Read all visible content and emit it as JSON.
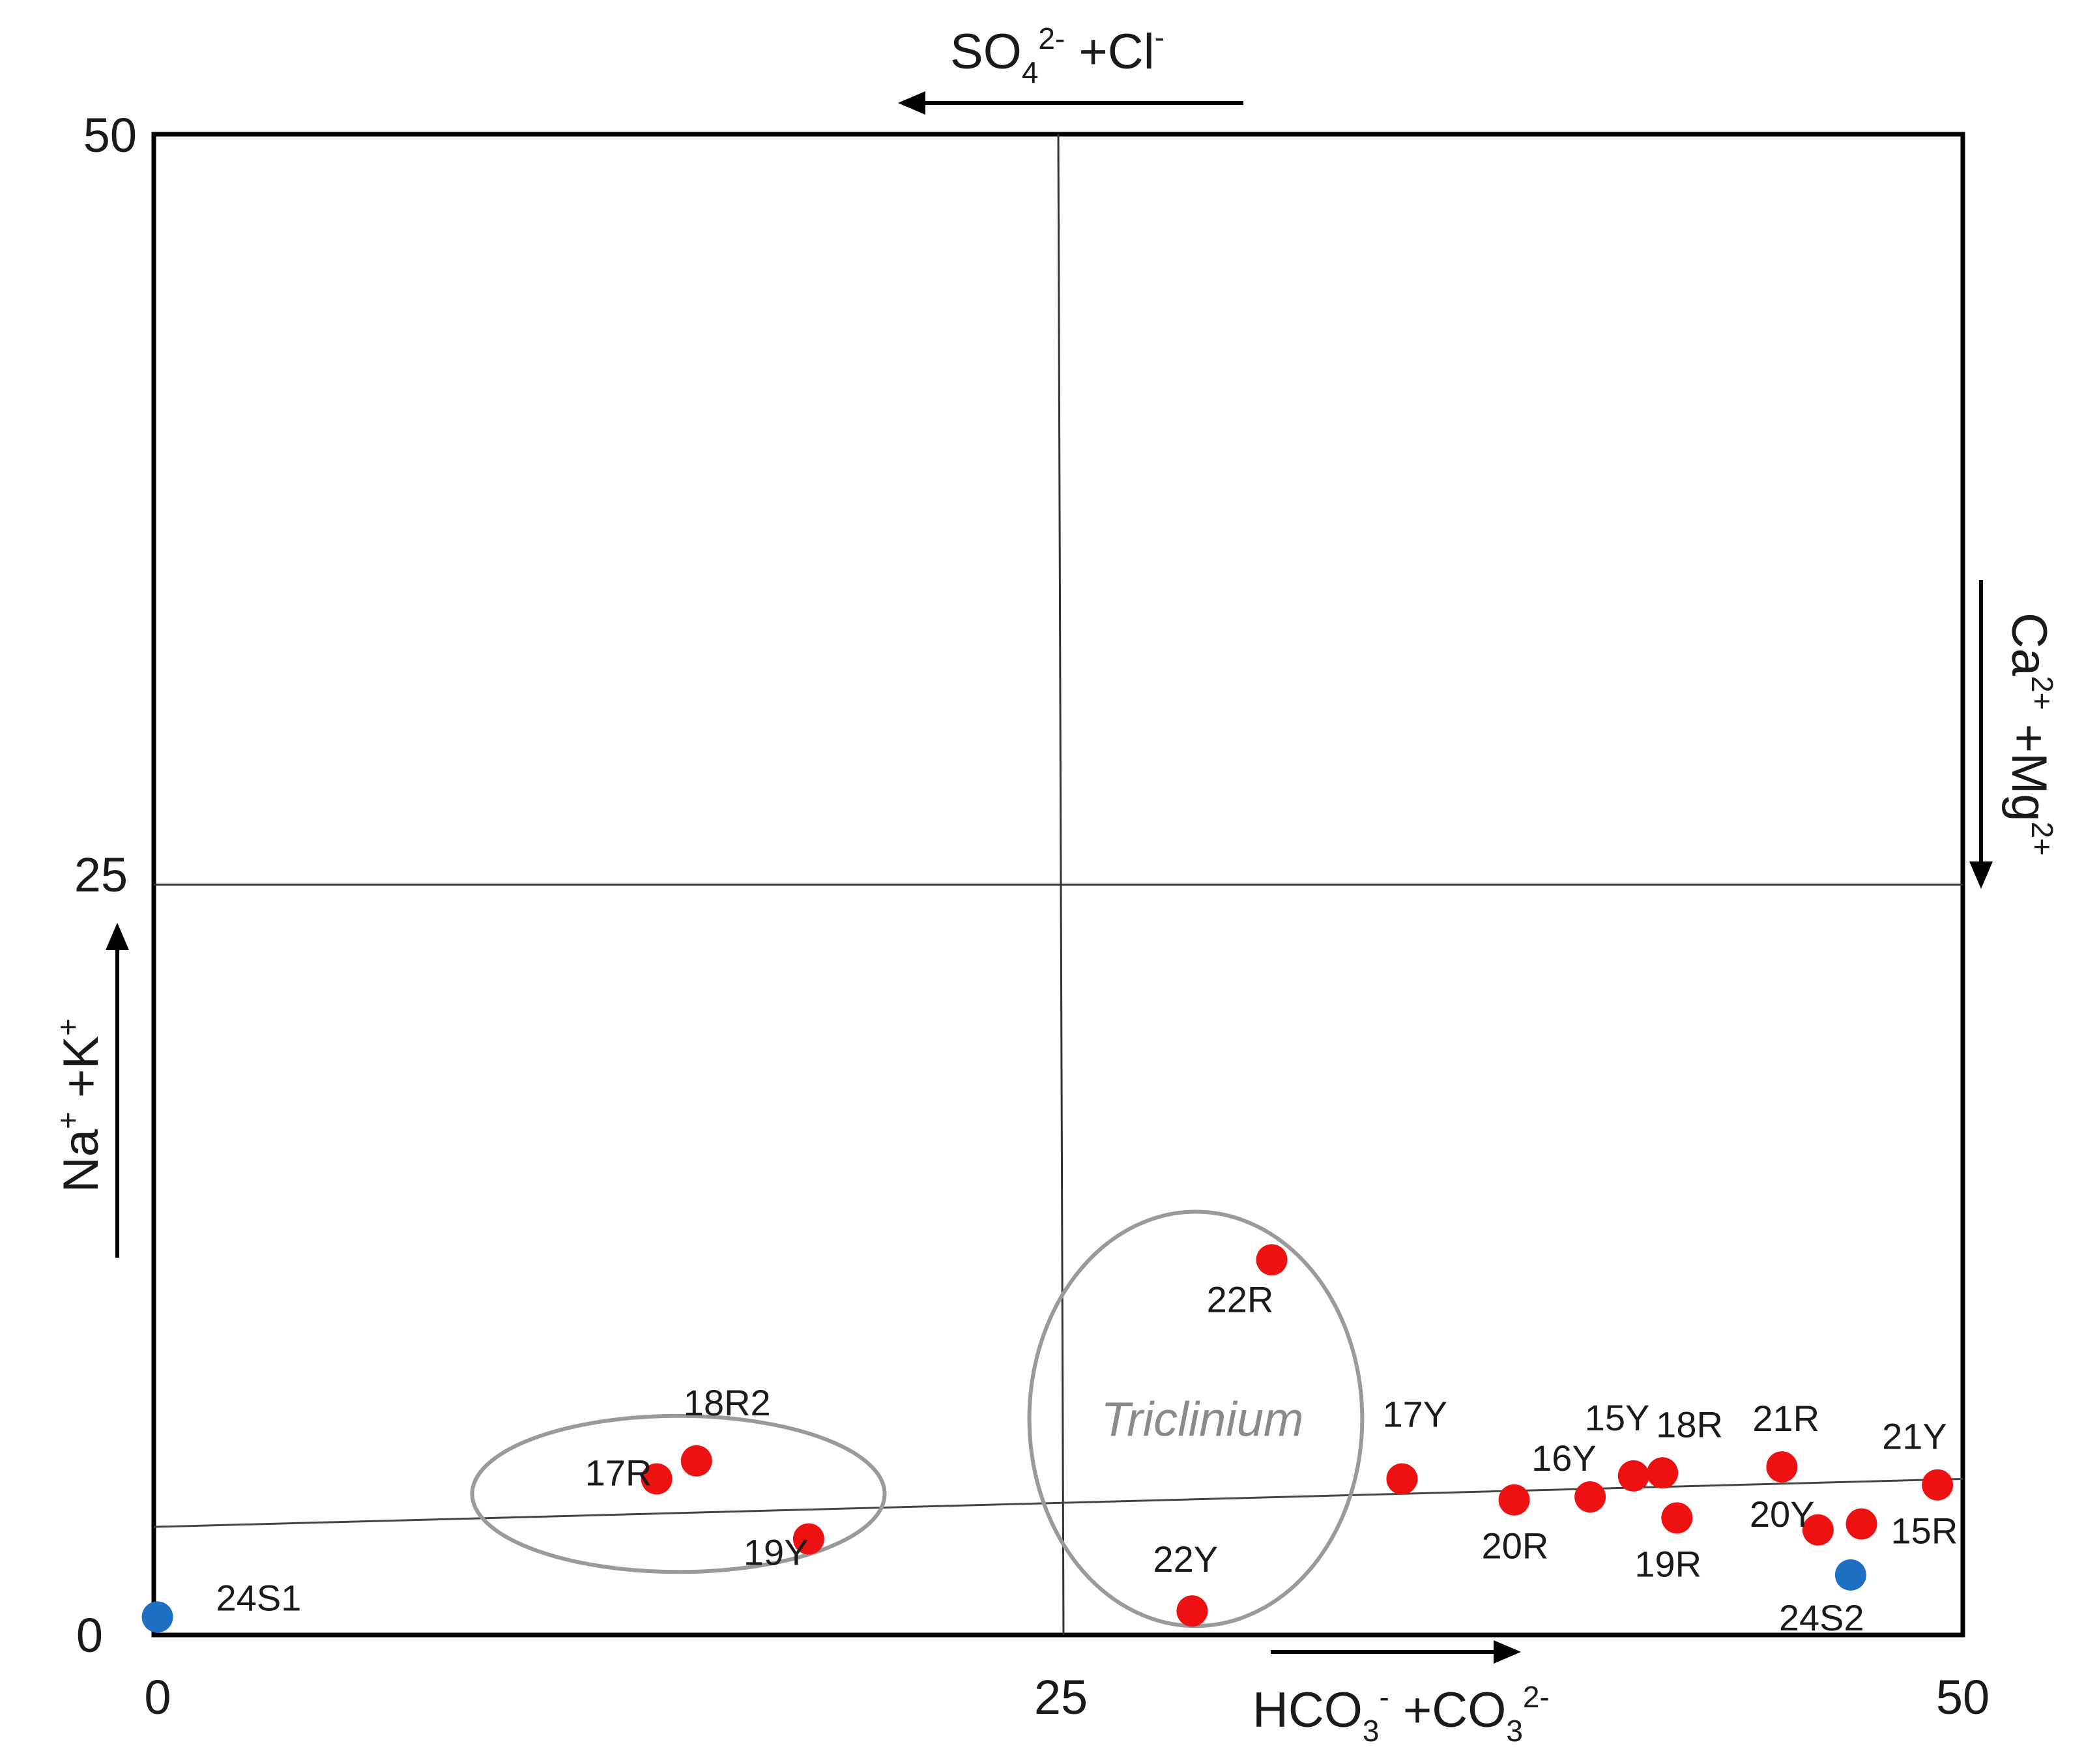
{
  "chart_data": {
    "type": "scatter",
    "title": "",
    "xlim": [
      0,
      50
    ],
    "ylim": [
      0,
      50
    ],
    "x_ticks": [
      "0",
      "25",
      "50"
    ],
    "y_ticks": [
      "0",
      "25",
      "50"
    ],
    "axis_labels": {
      "top": {
        "main": "SO",
        "sub": "4",
        "sup": "2-",
        "rest": " +Cl",
        "rest_sup": "-"
      },
      "bottom": {
        "main": "HCO",
        "sub": "3",
        "sup": "-",
        "rest": " +CO",
        "rest_sub": "3",
        "rest_sup": "2-"
      },
      "left": {
        "main": "Na",
        "sup": "+",
        "rest": " +K",
        "rest_sup": "+"
      },
      "right": {
        "main": "Ca",
        "sup": "2+",
        "rest": " +Mg",
        "rest_sup": "2+"
      }
    },
    "gridlines": {
      "x": 25,
      "y": 25
    },
    "trend_line": {
      "x": [
        0,
        50
      ],
      "y": [
        3.6,
        5.2
      ]
    },
    "colors": {
      "red": "#ee1111",
      "blue": "#1f6fc5",
      "axis": "#000000",
      "ellipse": "#9a9a9a"
    },
    "groups": [
      {
        "name": "",
        "center": [
          14.5,
          4.7
        ],
        "radii": [
          5.7,
          2.6
        ]
      },
      {
        "name": "Triclinium",
        "center": [
          28.8,
          7.2
        ],
        "radii": [
          4.6,
          6.9
        ]
      }
    ],
    "series": [
      {
        "name": "red",
        "color": "#ee1111",
        "points": [
          {
            "label": "17R",
            "x": 13.9,
            "y": 5.2
          },
          {
            "label": "18R2",
            "x": 15.0,
            "y": 5.8
          },
          {
            "label": "19Y",
            "x": 18.1,
            "y": 3.2
          },
          {
            "label": "22R",
            "x": 30.9,
            "y": 12.5
          },
          {
            "label": "22Y",
            "x": 28.7,
            "y": 0.8
          },
          {
            "label": "17Y",
            "x": 34.5,
            "y": 5.2
          },
          {
            "label": "20R",
            "x": 37.6,
            "y": 4.5
          },
          {
            "label": "16Y",
            "x": 39.7,
            "y": 4.6
          },
          {
            "label": "15Y",
            "x": 40.9,
            "y": 5.3
          },
          {
            "label": "18R",
            "x": 41.7,
            "y": 5.4
          },
          {
            "label": "19R",
            "x": 42.1,
            "y": 3.9
          },
          {
            "label": "21R",
            "x": 45.0,
            "y": 5.6
          },
          {
            "label": "20Y",
            "x": 46.0,
            "y": 3.5
          },
          {
            "label": "15R",
            "x": 47.2,
            "y": 3.7
          },
          {
            "label": "21Y",
            "x": 49.3,
            "y": 5.0
          }
        ]
      },
      {
        "name": "blue",
        "color": "#1f6fc5",
        "points": [
          {
            "label": "24S1",
            "x": 0.1,
            "y": 0.6
          },
          {
            "label": "24S2",
            "x": 46.9,
            "y": 2.0
          }
        ]
      }
    ]
  }
}
